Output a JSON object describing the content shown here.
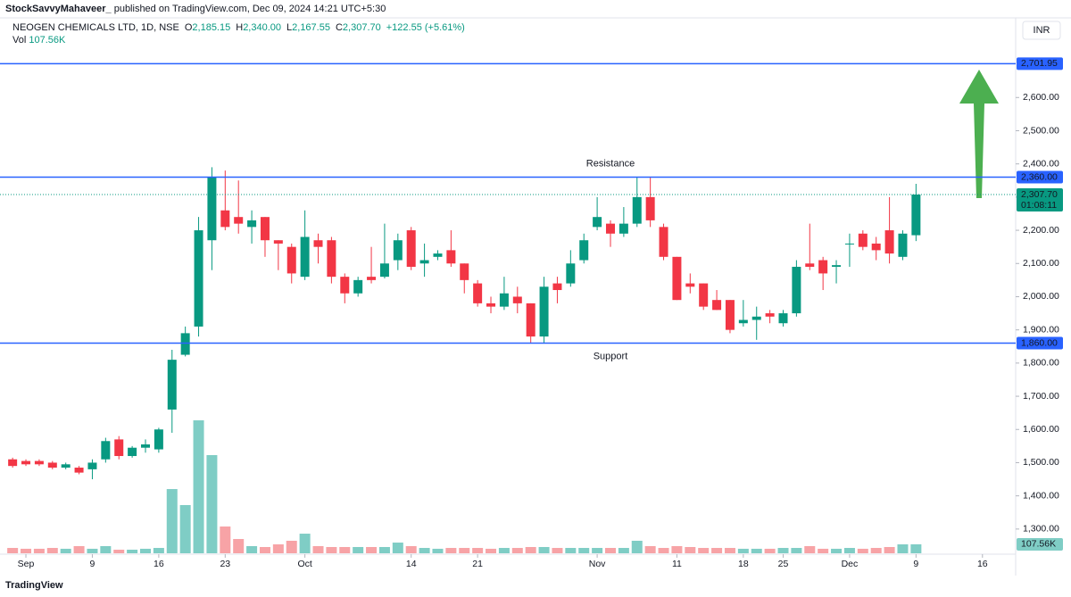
{
  "header": {
    "publisher": "StockSavvyMahaveer_",
    "published_text": "published on TradingView.com, Dec 09, 2024 14:21 UTC+5:30",
    "currency": "INR",
    "brand": "TradingView"
  },
  "chart_data": {
    "type": "candlestick",
    "title": "NEOGEN CHEMICALS LTD, 1D, NSE",
    "ohlc_legend": [
      {
        "key": "O",
        "text": "2,185.15"
      },
      {
        "key": "H",
        "text": "2,340.00"
      },
      {
        "key": "L",
        "text": "2,167.55"
      },
      {
        "key": "C",
        "text": "2,307.70"
      }
    ],
    "change_text": "+122.55 (+5.61%)",
    "volume_legend": {
      "key": "Vol",
      "text": "107.56K"
    },
    "up_color": "#089981",
    "down_color": "#f23645",
    "volume_up_color": "#7fcdc5",
    "volume_down_color": "#f7a3a6",
    "open": [
      1510,
      1505,
      1505,
      1500,
      1485,
      1485,
      1480,
      1510,
      1570,
      1520,
      1545,
      1540,
      1660,
      1825,
      1910,
      2170,
      2260,
      2240,
      2210,
      2240,
      2170,
      2150,
      2060,
      2170,
      2170,
      2060,
      2010,
      2060,
      2060,
      2110,
      2200,
      2100,
      2120,
      2140,
      2100,
      2040,
      1980,
      1970,
      2000,
      1980,
      1880,
      2040,
      2040,
      2110,
      2210,
      2220,
      2190,
      2220,
      2300,
      2210,
      2120,
      2040,
      2040,
      1990,
      1990,
      1920,
      1930,
      1950,
      1920,
      1950,
      2100,
      2110,
      2090,
      2160,
      2190,
      2160,
      2200,
      2120,
      2185.15
    ],
    "high": [
      1515,
      1510,
      1510,
      1505,
      1500,
      1490,
      1510,
      1575,
      1580,
      1550,
      1570,
      1605,
      1840,
      1910,
      2240,
      2390,
      2380,
      2350,
      2260,
      2240,
      2170,
      2160,
      2260,
      2190,
      2180,
      2070,
      2060,
      2150,
      2220,
      2190,
      2210,
      2160,
      2140,
      2200,
      2100,
      2050,
      2000,
      2060,
      2030,
      1980,
      2060,
      2060,
      2140,
      2190,
      2300,
      2230,
      2270,
      2360,
      2360,
      2220,
      2120,
      2070,
      2040,
      2020,
      1990,
      1990,
      1970,
      1960,
      1960,
      2110,
      2220,
      2120,
      2110,
      2190,
      2200,
      2180,
      2300,
      2200,
      2340
    ],
    "low": [
      1485,
      1490,
      1490,
      1480,
      1480,
      1465,
      1450,
      1500,
      1510,
      1515,
      1530,
      1530,
      1590,
      1820,
      1880,
      2080,
      2200,
      2190,
      2160,
      2120,
      2080,
      2040,
      2050,
      2100,
      2040,
      1980,
      2000,
      2040,
      2055,
      2080,
      2080,
      2060,
      2110,
      2090,
      2010,
      1970,
      1950,
      1960,
      1950,
      1860,
      1860,
      1980,
      2030,
      2100,
      2200,
      2150,
      2180,
      2210,
      2210,
      2110,
      1990,
      2010,
      1960,
      1960,
      1890,
      1910,
      1870,
      1920,
      1910,
      1940,
      2080,
      2020,
      2040,
      2090,
      2140,
      2110,
      2100,
      2110,
      2167.55
    ],
    "close": [
      1490,
      1495,
      1495,
      1485,
      1495,
      1470,
      1500,
      1565,
      1520,
      1545,
      1555,
      1600,
      1810,
      1890,
      2200,
      2360,
      2210,
      2220,
      2230,
      2170,
      2160,
      2070,
      2180,
      2150,
      2060,
      2010,
      2050,
      2050,
      2100,
      2170,
      2090,
      2110,
      2130,
      2100,
      2050,
      1980,
      1970,
      2010,
      1980,
      1880,
      2030,
      2020,
      2100,
      2170,
      2240,
      2190,
      2220,
      2300,
      2230,
      2120,
      1990,
      2030,
      1970,
      1960,
      1900,
      1930,
      1940,
      1940,
      1950,
      2090,
      2090,
      2070,
      2095,
      2160,
      2150,
      2140,
      2130,
      2190,
      2307.7
    ],
    "volume": [
      64,
      54,
      54,
      64,
      54,
      86,
      54,
      86,
      43,
      43,
      54,
      64,
      770,
      578,
      1594,
      1177,
      321,
      171,
      86,
      75,
      107,
      150,
      235,
      86,
      75,
      75,
      75,
      75,
      75,
      128,
      86,
      64,
      54,
      64,
      64,
      64,
      54,
      64,
      64,
      75,
      75,
      64,
      64,
      64,
      64,
      64,
      64,
      150,
      86,
      64,
      86,
      75,
      64,
      64,
      64,
      54,
      54,
      54,
      64,
      64,
      86,
      54,
      54,
      64,
      54,
      64,
      75,
      107,
      107.56
    ],
    "xlim": [
      -0.95,
      75.5
    ],
    "xticks": [
      {
        "value": 1,
        "label": "Sep"
      },
      {
        "value": 6,
        "label": "9"
      },
      {
        "value": 11,
        "label": "16"
      },
      {
        "value": 16,
        "label": "23"
      },
      {
        "value": 22,
        "label": "Oct"
      },
      {
        "value": 30,
        "label": "14"
      },
      {
        "value": 35,
        "label": "21"
      },
      {
        "value": 44,
        "label": "Nov"
      },
      {
        "value": 50,
        "label": "11"
      },
      {
        "value": 55,
        "label": "18"
      },
      {
        "value": 58,
        "label": "25"
      },
      {
        "value": 63,
        "label": "Dec"
      },
      {
        "value": 68,
        "label": "9"
      },
      {
        "value": 73,
        "label": "16"
      }
    ],
    "ylim": [
      1227,
      2840
    ],
    "yticks": [
      {
        "value": 1300,
        "label": "1,300.00"
      },
      {
        "value": 1400,
        "label": "1,400.00"
      },
      {
        "value": 1500,
        "label": "1,500.00"
      },
      {
        "value": 1600,
        "label": "1,600.00"
      },
      {
        "value": 1700,
        "label": "1,700.00"
      },
      {
        "value": 1800,
        "label": "1,800.00"
      },
      {
        "value": 1900,
        "label": "1,900.00"
      },
      {
        "value": 2000,
        "label": "2,000.00"
      },
      {
        "value": 2100,
        "label": "2,100.00"
      },
      {
        "value": 2200,
        "label": "2,200.00"
      },
      {
        "value": 2300,
        "label": "2,300.00"
      },
      {
        "value": 2400,
        "label": "2,400.00"
      },
      {
        "value": 2500,
        "label": "2,500.00"
      },
      {
        "value": 2600,
        "label": "2,600.00"
      }
    ],
    "levels": [
      {
        "value": 2701.95,
        "label": "2,701.95",
        "color": "#2962ff"
      },
      {
        "value": 2360,
        "label": "2,360.00",
        "color": "#2962ff"
      },
      {
        "value": 1860,
        "label": "1,860.00",
        "color": "#2962ff"
      }
    ],
    "last_price": {
      "value": 2307.7,
      "label": "2,307.70",
      "countdown": "01:08:11"
    },
    "annotations": [
      {
        "text": "Resistance",
        "x": 45,
        "y": 2400,
        "color": "#2962ff"
      },
      {
        "text": "Support",
        "x": 45,
        "y": 1820,
        "color": "#f23645"
      }
    ],
    "volume_label": "107.56K"
  }
}
